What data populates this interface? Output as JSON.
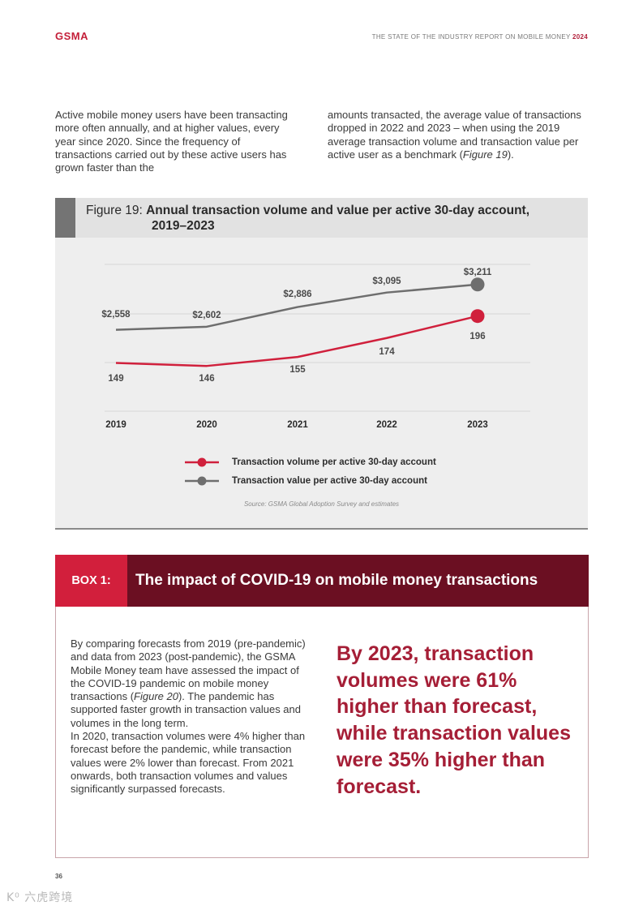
{
  "header": {
    "logo": "GSMA",
    "report_title": "THE STATE OF THE INDUSTRY REPORT ON MOBILE MONEY",
    "report_year": "2024"
  },
  "intro": {
    "left_text": "Active mobile money users have been transacting more often annually, and at higher values, every year since 2020. Since the frequency of transactions carried out by these active users has grown faster than the",
    "right_text_before": "amounts transacted, the average value of transactions dropped in 2022 and 2023 – when using the 2019 average transaction volume and transaction value per active user as a benchmark (",
    "right_text_italic": "Figure 19",
    "right_text_after": ")."
  },
  "figure": {
    "prefix": "Figure 19:",
    "title_line1": "Annual transaction volume and value per active 30-day account,",
    "title_line2": "2019–2023",
    "source": "Source: GSMA Global Adoption Survey and estimates"
  },
  "chart_data": {
    "type": "line",
    "title": "Annual transaction volume and value per active 30-day account, 2019–2023",
    "categories": [
      "2019",
      "2020",
      "2021",
      "2022",
      "2023"
    ],
    "series": [
      {
        "name": "Transaction volume per active 30-day account",
        "values": [
          149,
          146,
          155,
          174,
          196
        ],
        "labels": [
          "149",
          "146",
          "155",
          "174",
          "196"
        ],
        "color": "#d0203c"
      },
      {
        "name": "Transaction value per active 30-day account",
        "values": [
          2558,
          2602,
          2886,
          3095,
          3211
        ],
        "labels": [
          "$2,558",
          "$2,602",
          "$2,886",
          "$3,095",
          "$3,211"
        ],
        "color": "#6e6e6e"
      }
    ],
    "legend_position": "bottom",
    "grid": true
  },
  "box": {
    "label": "BOX 1:",
    "title": "The impact of COVID-19 on mobile money transactions",
    "body_before": "By comparing forecasts from 2019 (pre-pandemic) and data from 2023 (post-pandemic), the GSMA Mobile Money team have assessed the impact of the COVID-19 pandemic on mobile money transactions (",
    "body_italic": "Figure 20",
    "body_after": "). The pandemic has supported faster growth in transaction values and volumes in the long term.",
    "body_p2": "In 2020, transaction volumes were 4% higher than forecast before the pandemic, while transaction values were 2% lower than forecast. From 2021 onwards, both transaction volumes and values significantly surpassed forecasts.",
    "quote": "By 2023, transaction volumes were 61% higher than forecast, while transaction values were 35% higher than forecast."
  },
  "footer": {
    "page_number": "36",
    "watermark": "K⁰ 六虎跨境"
  }
}
